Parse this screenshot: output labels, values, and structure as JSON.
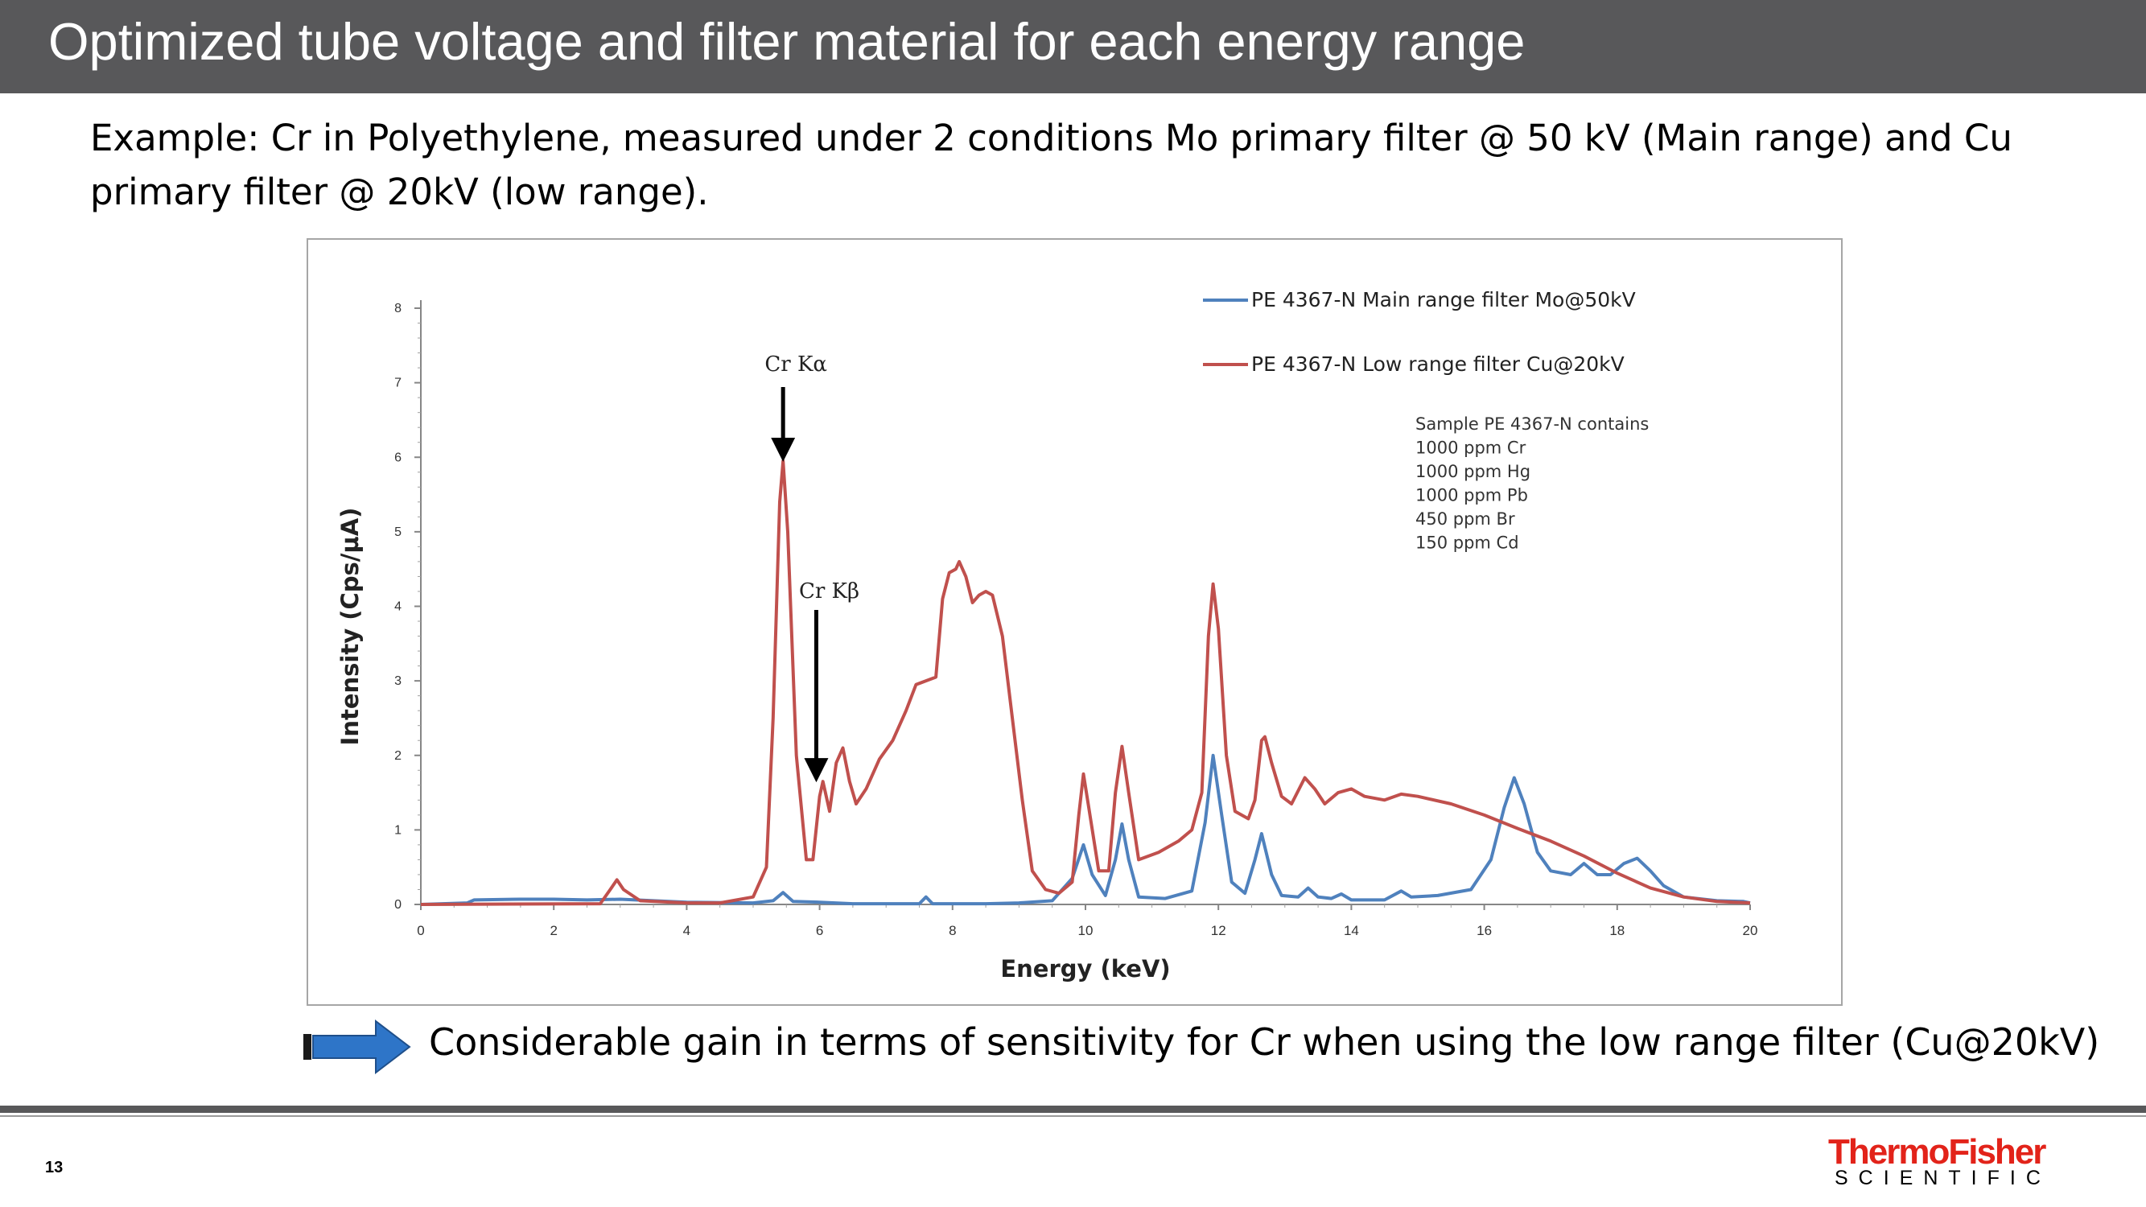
{
  "slide": {
    "title": "Optimized tube voltage and filter material for each energy range",
    "intro": "Example: Cr in Polyethylene, measured under 2 conditions Mo primary filter @ 50 kV (Main range) and Cu primary filter @ 20kV (low range).",
    "conclusion": "Considerable gain in terms of sensitivity for Cr when using the low range filter  (Cu@20kV)",
    "page_number": "13",
    "logo": {
      "name": "ThermoFisher",
      "sub": "SCIENTIFIC"
    }
  },
  "colors": {
    "title_bar": "#58585a",
    "series_main": "#4f81bd",
    "series_low": "#c0504d",
    "arrow": "#2e75c8",
    "logo_red": "#e2231a"
  },
  "chart_data": {
    "type": "line",
    "xlabel": "Energy (keV)",
    "ylabel": "Intensity (Cps/µA)",
    "xlim": [
      0,
      20
    ],
    "ylim": [
      0,
      8
    ],
    "xticks": [
      0,
      2,
      4,
      6,
      8,
      10,
      12,
      14,
      16,
      18,
      20
    ],
    "yticks": [
      0,
      1,
      2,
      3,
      4,
      5,
      6,
      7,
      8
    ],
    "grid": false,
    "legend_position": "top-right",
    "annotations": [
      {
        "text": "Cr Kα",
        "x": 5.45,
        "y": 5.95
      },
      {
        "text": "Cr Kβ",
        "x": 5.95,
        "y": 1.65
      }
    ],
    "note_lines": [
      "Sample PE 4367-N contains",
      "1000 ppm Cr",
      "1000 ppm Hg",
      "1000 ppm Pb",
      "450 ppm Br",
      "150 ppm Cd"
    ],
    "series": [
      {
        "name": "PE 4367-N Main range filter Mo@50kV",
        "color": "#4f81bd",
        "points": [
          [
            0,
            0
          ],
          [
            0.7,
            0.02
          ],
          [
            0.8,
            0.06
          ],
          [
            1.5,
            0.07
          ],
          [
            2.0,
            0.07
          ],
          [
            2.5,
            0.06
          ],
          [
            3.0,
            0.07
          ],
          [
            3.5,
            0.05
          ],
          [
            4.0,
            0.03
          ],
          [
            5.0,
            0.02
          ],
          [
            5.3,
            0.05
          ],
          [
            5.45,
            0.16
          ],
          [
            5.6,
            0.04
          ],
          [
            6.0,
            0.03
          ],
          [
            6.5,
            0.01
          ],
          [
            7.5,
            0.01
          ],
          [
            7.6,
            0.1
          ],
          [
            7.7,
            0.01
          ],
          [
            8.5,
            0.01
          ],
          [
            9.0,
            0.02
          ],
          [
            9.5,
            0.05
          ],
          [
            9.8,
            0.35
          ],
          [
            9.97,
            0.8
          ],
          [
            10.1,
            0.4
          ],
          [
            10.3,
            0.12
          ],
          [
            10.45,
            0.6
          ],
          [
            10.55,
            1.08
          ],
          [
            10.65,
            0.6
          ],
          [
            10.8,
            0.1
          ],
          [
            11.2,
            0.08
          ],
          [
            11.6,
            0.18
          ],
          [
            11.8,
            1.1
          ],
          [
            11.92,
            2.0
          ],
          [
            12.05,
            1.2
          ],
          [
            12.2,
            0.3
          ],
          [
            12.4,
            0.15
          ],
          [
            12.55,
            0.6
          ],
          [
            12.65,
            0.95
          ],
          [
            12.8,
            0.4
          ],
          [
            12.95,
            0.12
          ],
          [
            13.2,
            0.1
          ],
          [
            13.35,
            0.22
          ],
          [
            13.5,
            0.1
          ],
          [
            13.7,
            0.08
          ],
          [
            13.85,
            0.14
          ],
          [
            14.0,
            0.06
          ],
          [
            14.5,
            0.06
          ],
          [
            14.75,
            0.18
          ],
          [
            14.9,
            0.1
          ],
          [
            15.3,
            0.12
          ],
          [
            15.8,
            0.2
          ],
          [
            16.1,
            0.6
          ],
          [
            16.3,
            1.3
          ],
          [
            16.45,
            1.7
          ],
          [
            16.6,
            1.35
          ],
          [
            16.8,
            0.7
          ],
          [
            17.0,
            0.45
          ],
          [
            17.3,
            0.4
          ],
          [
            17.5,
            0.55
          ],
          [
            17.7,
            0.4
          ],
          [
            17.9,
            0.4
          ],
          [
            18.1,
            0.55
          ],
          [
            18.3,
            0.62
          ],
          [
            18.5,
            0.45
          ],
          [
            18.7,
            0.25
          ],
          [
            19.0,
            0.1
          ],
          [
            19.5,
            0.05
          ],
          [
            19.9,
            0.04
          ],
          [
            20.0,
            0.02
          ]
        ]
      },
      {
        "name": "PE 4367-N Low range filter Cu@20kV",
        "color": "#c0504d",
        "points": [
          [
            0,
            0
          ],
          [
            2.7,
            0.01
          ],
          [
            2.85,
            0.2
          ],
          [
            2.95,
            0.33
          ],
          [
            3.05,
            0.2
          ],
          [
            3.3,
            0.05
          ],
          [
            4.0,
            0.02
          ],
          [
            4.5,
            0.02
          ],
          [
            5.0,
            0.1
          ],
          [
            5.2,
            0.5
          ],
          [
            5.3,
            2.5
          ],
          [
            5.4,
            5.4
          ],
          [
            5.45,
            5.95
          ],
          [
            5.52,
            5.0
          ],
          [
            5.65,
            2.0
          ],
          [
            5.8,
            0.6
          ],
          [
            5.9,
            0.6
          ],
          [
            6.0,
            1.45
          ],
          [
            6.05,
            1.65
          ],
          [
            6.15,
            1.25
          ],
          [
            6.25,
            1.9
          ],
          [
            6.35,
            2.1
          ],
          [
            6.45,
            1.65
          ],
          [
            6.55,
            1.35
          ],
          [
            6.7,
            1.55
          ],
          [
            6.9,
            1.95
          ],
          [
            7.1,
            2.2
          ],
          [
            7.3,
            2.6
          ],
          [
            7.45,
            2.95
          ],
          [
            7.6,
            3.0
          ],
          [
            7.75,
            3.05
          ],
          [
            7.85,
            4.1
          ],
          [
            7.95,
            4.45
          ],
          [
            8.05,
            4.5
          ],
          [
            8.1,
            4.6
          ],
          [
            8.2,
            4.4
          ],
          [
            8.3,
            4.05
          ],
          [
            8.4,
            4.15
          ],
          [
            8.5,
            4.2
          ],
          [
            8.6,
            4.15
          ],
          [
            8.75,
            3.6
          ],
          [
            8.9,
            2.5
          ],
          [
            9.05,
            1.4
          ],
          [
            9.2,
            0.45
          ],
          [
            9.4,
            0.2
          ],
          [
            9.6,
            0.15
          ],
          [
            9.8,
            0.3
          ],
          [
            9.9,
            1.2
          ],
          [
            9.97,
            1.75
          ],
          [
            10.05,
            1.3
          ],
          [
            10.2,
            0.45
          ],
          [
            10.35,
            0.45
          ],
          [
            10.45,
            1.5
          ],
          [
            10.55,
            2.12
          ],
          [
            10.65,
            1.5
          ],
          [
            10.8,
            0.6
          ],
          [
            11.1,
            0.7
          ],
          [
            11.4,
            0.85
          ],
          [
            11.6,
            1.0
          ],
          [
            11.75,
            1.5
          ],
          [
            11.85,
            3.6
          ],
          [
            11.92,
            4.3
          ],
          [
            12.0,
            3.7
          ],
          [
            12.12,
            2.0
          ],
          [
            12.25,
            1.25
          ],
          [
            12.45,
            1.15
          ],
          [
            12.55,
            1.4
          ],
          [
            12.65,
            2.2
          ],
          [
            12.7,
            2.25
          ],
          [
            12.8,
            1.9
          ],
          [
            12.95,
            1.45
          ],
          [
            13.1,
            1.35
          ],
          [
            13.3,
            1.7
          ],
          [
            13.45,
            1.55
          ],
          [
            13.6,
            1.35
          ],
          [
            13.8,
            1.5
          ],
          [
            14.0,
            1.55
          ],
          [
            14.2,
            1.45
          ],
          [
            14.5,
            1.4
          ],
          [
            14.75,
            1.48
          ],
          [
            15.0,
            1.45
          ],
          [
            15.5,
            1.35
          ],
          [
            16.0,
            1.2
          ],
          [
            16.5,
            1.02
          ],
          [
            17.0,
            0.85
          ],
          [
            17.5,
            0.65
          ],
          [
            18.0,
            0.42
          ],
          [
            18.5,
            0.22
          ],
          [
            19.0,
            0.1
          ],
          [
            19.5,
            0.04
          ],
          [
            20.0,
            0.02
          ]
        ]
      }
    ]
  }
}
